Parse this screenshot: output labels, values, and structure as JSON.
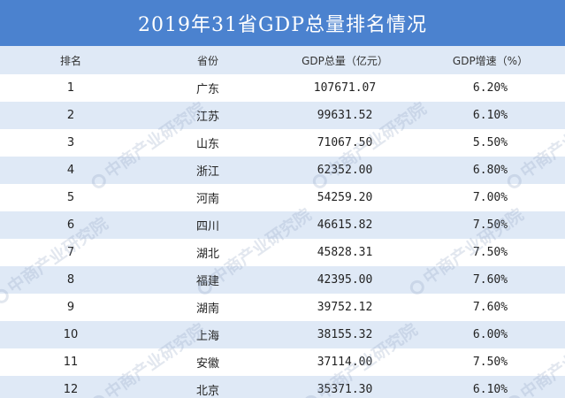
{
  "title": "2019年31省GDP总量排名情况",
  "headers": [
    "排名",
    "省份",
    "GDP总量（亿元）",
    "GDP增速（%）"
  ],
  "rows": [
    {
      "rank": "1",
      "province": "广东",
      "gdp": "107671.07",
      "growth": "6.20%"
    },
    {
      "rank": "2",
      "province": "江苏",
      "gdp": "99631.52",
      "growth": "6.10%"
    },
    {
      "rank": "3",
      "province": "山东",
      "gdp": "71067.50",
      "growth": "5.50%"
    },
    {
      "rank": "4",
      "province": "浙江",
      "gdp": "62352.00",
      "growth": "6.80%"
    },
    {
      "rank": "5",
      "province": "河南",
      "gdp": "54259.20",
      "growth": "7.00%"
    },
    {
      "rank": "6",
      "province": "四川",
      "gdp": "46615.82",
      "growth": "7.50%"
    },
    {
      "rank": "7",
      "province": "湖北",
      "gdp": "45828.31",
      "growth": "7.50%"
    },
    {
      "rank": "8",
      "province": "福建",
      "gdp": "42395.00",
      "growth": "7.60%"
    },
    {
      "rank": "9",
      "province": "湖南",
      "gdp": "39752.12",
      "growth": "7.60%"
    },
    {
      "rank": "10",
      "province": "上海",
      "gdp": "38155.32",
      "growth": "6.00%"
    },
    {
      "rank": "11",
      "province": "安徽",
      "gdp": "37114.00",
      "growth": "7.50%"
    },
    {
      "rank": "12",
      "province": "北京",
      "gdp": "35371.30",
      "growth": "6.10%"
    }
  ],
  "watermark": "中商产业研究院",
  "colors": {
    "title_bg": "#4b82cf",
    "stripe": "#dfe9f6"
  }
}
